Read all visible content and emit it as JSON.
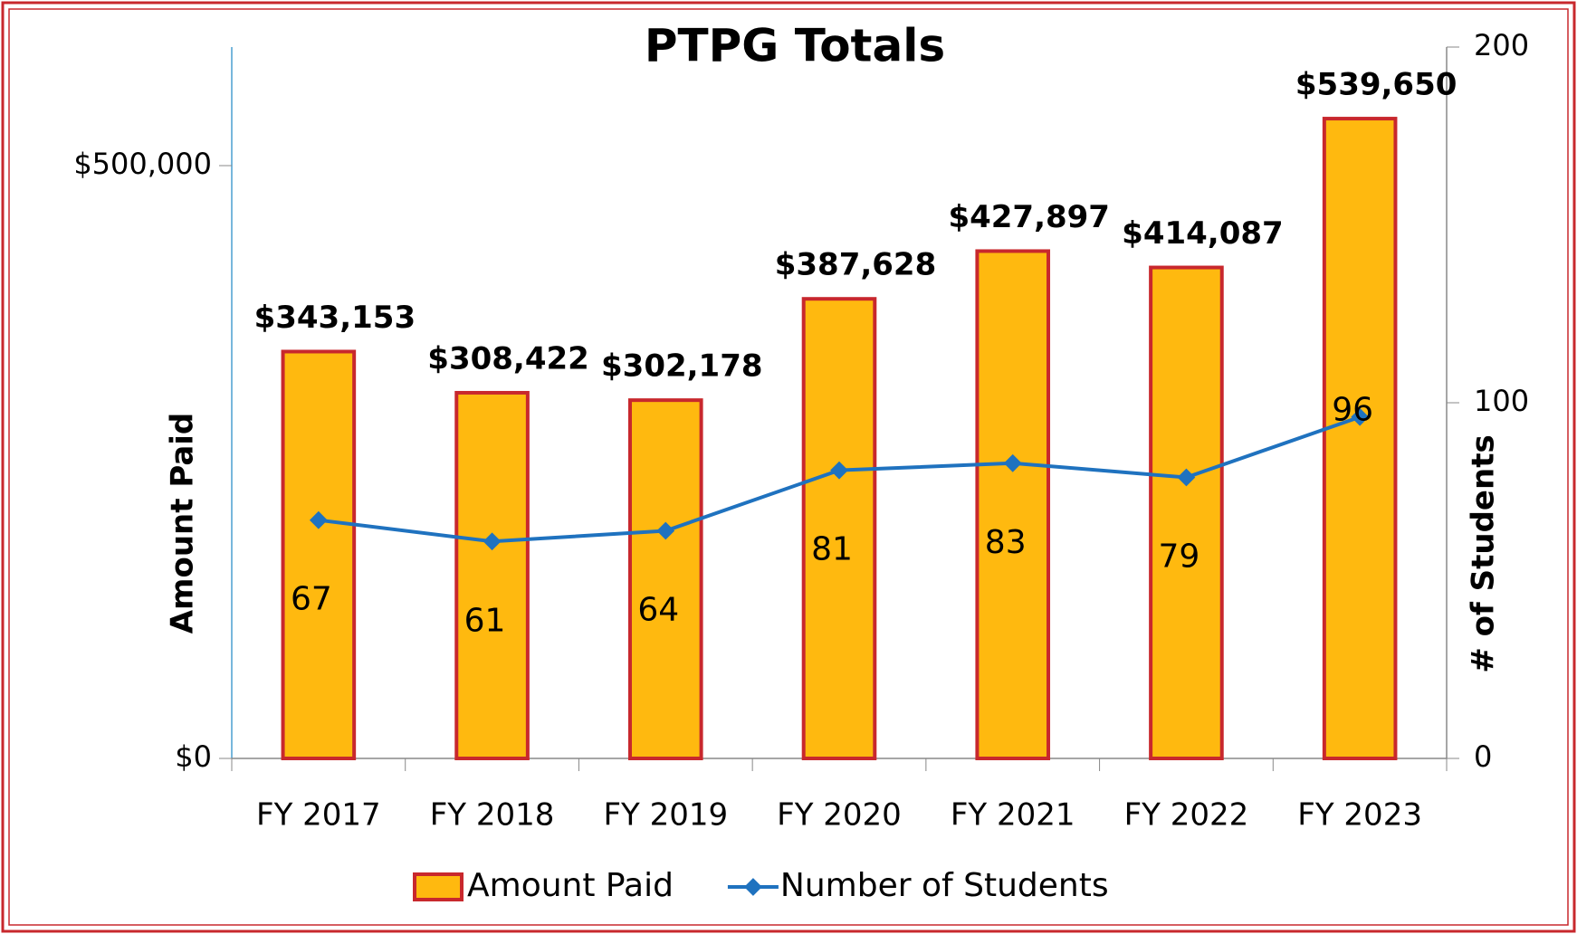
{
  "chart_data": {
    "type": "bar",
    "title": "PTPG Totals",
    "ylabel": "Amount Paid",
    "y2label": "# of Students",
    "categories": [
      "FY 2017",
      "FY 2018",
      "FY 2019",
      "FY 2020",
      "FY 2021",
      "FY 2022",
      "FY 2023"
    ],
    "series": [
      {
        "name": "Amount Paid",
        "type": "bar",
        "color": "#ffb90f",
        "edgecolor": "#c8282d",
        "values": [
          343153,
          308422,
          302178,
          387628,
          427897,
          414087,
          539650
        ],
        "value_labels": [
          "$343,153",
          "$308,422",
          "$302,178",
          "$387,628",
          "$427,897",
          "$414,087",
          "$539,650"
        ]
      },
      {
        "name": "Number of Students",
        "type": "line",
        "axis": "y2",
        "color": "#1f72bf",
        "values": [
          67,
          61,
          64,
          81,
          83,
          79,
          96
        ]
      }
    ],
    "ylim": [
      0,
      600000
    ],
    "yticks": [
      {
        "value": 0,
        "label": "$0"
      },
      {
        "value": 500000,
        "label": "$500,000"
      }
    ],
    "y2lim": [
      0,
      200
    ],
    "y2ticks": [
      0,
      100,
      200
    ],
    "legend": "bottom",
    "grid": false
  }
}
